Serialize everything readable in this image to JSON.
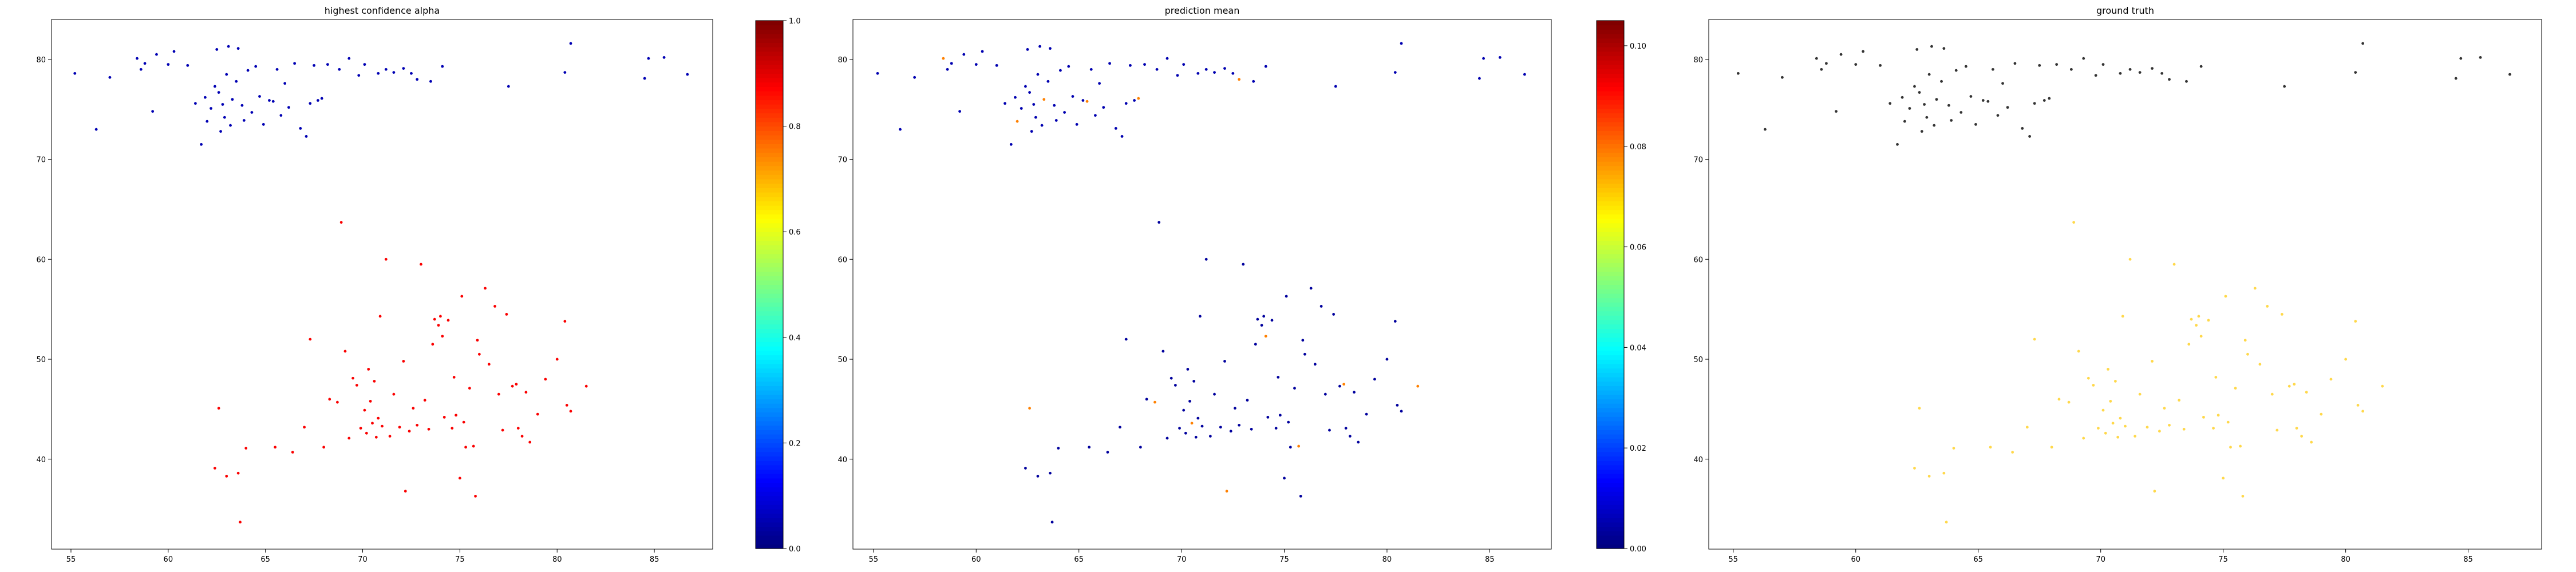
{
  "chart_data": [
    {
      "type": "scatter",
      "title": "highest confidence alpha",
      "xlabel": "",
      "ylabel": "",
      "xlim": [
        54,
        88
      ],
      "ylim": [
        31,
        84
      ],
      "xticks": [
        55,
        60,
        65,
        70,
        75,
        80,
        85
      ],
      "yticks": [
        40,
        50,
        60,
        70,
        80
      ],
      "grid": false,
      "colormap": "jet",
      "colorbar": {
        "min": 0.0,
        "max": 1.0,
        "ticks": [
          "0.0",
          "0.2",
          "0.4",
          "0.6",
          "0.8",
          "1.0"
        ]
      },
      "color_rule": "region",
      "north_value": 0.05,
      "south_value": 0.88
    },
    {
      "type": "scatter",
      "title": "prediction mean",
      "xlabel": "",
      "ylabel": "",
      "xlim": [
        54,
        88
      ],
      "ylim": [
        31,
        84
      ],
      "xticks": [
        55,
        60,
        65,
        70,
        75,
        80,
        85
      ],
      "yticks": [
        40,
        50,
        60,
        70,
        80
      ],
      "grid": false,
      "colormap": "jet",
      "colorbar": {
        "min": 0.0,
        "max": 0.105,
        "ticks": [
          "0.00",
          "0.02",
          "0.04",
          "0.06",
          "0.08",
          "0.10"
        ]
      },
      "color_rule": "mixed",
      "north_value": 0.005,
      "south_value": 0.003
    },
    {
      "type": "scatter",
      "title": "ground truth",
      "xlabel": "",
      "ylabel": "",
      "xlim": [
        54,
        88
      ],
      "ylim": [
        31,
        84
      ],
      "xticks": [
        55,
        60,
        65,
        70,
        75,
        80,
        85
      ],
      "yticks": [
        40,
        50,
        60,
        70,
        80
      ],
      "grid": false,
      "colormap": "none",
      "color_rule": "region",
      "north_color": "#333333",
      "south_color": "#ffd84a"
    }
  ],
  "points": [
    [
      55.2,
      78.6
    ],
    [
      56.3,
      73.0
    ],
    [
      57.0,
      78.2
    ],
    [
      58.4,
      80.1
    ],
    [
      58.6,
      79.0
    ],
    [
      58.8,
      79.6
    ],
    [
      59.2,
      74.8
    ],
    [
      59.4,
      80.5
    ],
    [
      60.0,
      79.5
    ],
    [
      60.3,
      80.8
    ],
    [
      61.0,
      79.4
    ],
    [
      61.4,
      75.6
    ],
    [
      61.7,
      71.5
    ],
    [
      61.9,
      76.2
    ],
    [
      62.0,
      73.8
    ],
    [
      62.2,
      75.1
    ],
    [
      62.4,
      77.3
    ],
    [
      62.5,
      81.0
    ],
    [
      62.6,
      76.7
    ],
    [
      62.7,
      72.8
    ],
    [
      62.8,
      75.5
    ],
    [
      62.9,
      74.2
    ],
    [
      63.0,
      78.5
    ],
    [
      63.1,
      81.3
    ],
    [
      63.2,
      73.4
    ],
    [
      63.3,
      76.0
    ],
    [
      63.5,
      77.8
    ],
    [
      63.6,
      81.1
    ],
    [
      63.8,
      75.4
    ],
    [
      63.9,
      73.9
    ],
    [
      64.1,
      78.9
    ],
    [
      64.3,
      74.7
    ],
    [
      64.5,
      79.3
    ],
    [
      64.7,
      76.3
    ],
    [
      64.9,
      73.5
    ],
    [
      65.2,
      75.9
    ],
    [
      65.4,
      75.8
    ],
    [
      65.6,
      79.0
    ],
    [
      65.8,
      74.4
    ],
    [
      66.0,
      77.6
    ],
    [
      66.2,
      75.2
    ],
    [
      66.5,
      79.6
    ],
    [
      66.8,
      73.1
    ],
    [
      67.1,
      72.3
    ],
    [
      67.3,
      75.6
    ],
    [
      67.5,
      79.4
    ],
    [
      67.7,
      75.9
    ],
    [
      67.9,
      76.1
    ],
    [
      68.2,
      79.5
    ],
    [
      68.8,
      79.0
    ],
    [
      69.3,
      80.1
    ],
    [
      69.8,
      78.4
    ],
    [
      70.1,
      79.5
    ],
    [
      70.8,
      78.6
    ],
    [
      71.2,
      79.0
    ],
    [
      71.6,
      78.7
    ],
    [
      72.1,
      79.1
    ],
    [
      72.5,
      78.6
    ],
    [
      72.8,
      78.0
    ],
    [
      73.5,
      77.8
    ],
    [
      74.1,
      79.3
    ],
    [
      77.5,
      77.3
    ],
    [
      80.4,
      78.7
    ],
    [
      80.7,
      81.6
    ],
    [
      84.5,
      78.1
    ],
    [
      84.7,
      80.1
    ],
    [
      85.5,
      80.2
    ],
    [
      86.7,
      78.5
    ],
    [
      62.4,
      39.1
    ],
    [
      62.6,
      45.1
    ],
    [
      63.0,
      38.3
    ],
    [
      63.6,
      38.6
    ],
    [
      63.7,
      33.7
    ],
    [
      64.0,
      41.1
    ],
    [
      65.5,
      41.2
    ],
    [
      66.4,
      40.7
    ],
    [
      67.0,
      43.2
    ],
    [
      67.3,
      52.0
    ],
    [
      68.0,
      41.2
    ],
    [
      68.3,
      46.0
    ],
    [
      68.7,
      45.7
    ],
    [
      68.9,
      63.7
    ],
    [
      69.1,
      50.8
    ],
    [
      69.3,
      42.1
    ],
    [
      69.5,
      48.1
    ],
    [
      69.7,
      47.4
    ],
    [
      69.9,
      43.1
    ],
    [
      70.1,
      44.9
    ],
    [
      70.2,
      42.6
    ],
    [
      70.3,
      49.0
    ],
    [
      70.4,
      45.8
    ],
    [
      70.5,
      43.6
    ],
    [
      70.6,
      47.8
    ],
    [
      70.7,
      42.2
    ],
    [
      70.8,
      44.1
    ],
    [
      70.9,
      54.3
    ],
    [
      71.0,
      43.3
    ],
    [
      71.2,
      60.0
    ],
    [
      71.4,
      42.3
    ],
    [
      71.6,
      46.5
    ],
    [
      71.9,
      43.2
    ],
    [
      72.1,
      49.8
    ],
    [
      72.2,
      36.8
    ],
    [
      72.4,
      42.8
    ],
    [
      72.6,
      45.1
    ],
    [
      72.8,
      43.4
    ],
    [
      73.0,
      59.5
    ],
    [
      73.2,
      45.9
    ],
    [
      73.4,
      43.0
    ],
    [
      73.6,
      51.5
    ],
    [
      73.7,
      54.0
    ],
    [
      73.9,
      53.4
    ],
    [
      74.0,
      54.3
    ],
    [
      74.1,
      52.3
    ],
    [
      74.2,
      44.2
    ],
    [
      74.4,
      53.9
    ],
    [
      74.6,
      43.1
    ],
    [
      74.7,
      48.2
    ],
    [
      74.8,
      44.4
    ],
    [
      75.0,
      38.1
    ],
    [
      75.1,
      56.3
    ],
    [
      75.2,
      43.7
    ],
    [
      75.3,
      41.2
    ],
    [
      75.5,
      47.1
    ],
    [
      75.7,
      41.3
    ],
    [
      75.8,
      36.3
    ],
    [
      75.9,
      51.9
    ],
    [
      76.0,
      50.5
    ],
    [
      76.3,
      57.1
    ],
    [
      76.5,
      49.5
    ],
    [
      76.8,
      55.3
    ],
    [
      77.0,
      46.5
    ],
    [
      77.2,
      42.9
    ],
    [
      77.4,
      54.5
    ],
    [
      77.7,
      47.3
    ],
    [
      77.9,
      47.5
    ],
    [
      78.0,
      43.1
    ],
    [
      78.2,
      42.3
    ],
    [
      78.4,
      46.7
    ],
    [
      78.6,
      41.7
    ],
    [
      79.0,
      44.5
    ],
    [
      79.4,
      48.0
    ],
    [
      80.0,
      50.0
    ],
    [
      80.4,
      53.8
    ],
    [
      80.5,
      45.4
    ],
    [
      80.7,
      44.8
    ],
    [
      81.5,
      47.3
    ]
  ]
}
